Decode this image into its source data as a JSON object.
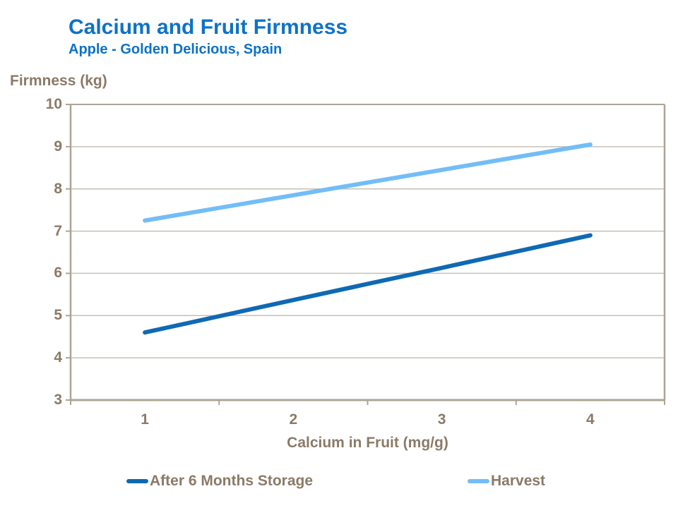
{
  "header": {
    "title": "Calcium and Fruit Firmness",
    "subtitle": "Apple - Golden Delicious, Spain"
  },
  "colors": {
    "title_blue": "#0E72C6",
    "label_brown": "#8B7A67",
    "axis": "#AEA496",
    "grid": "#C7C0B6",
    "background": "#FFFFFF"
  },
  "chart_data": {
    "type": "line",
    "title": "Calcium and Fruit Firmness",
    "subtitle": "Apple - Golden Delicious, Spain",
    "xlabel": "Calcium in Fruit (mg/g)",
    "ylabel": "Firmness (kg)",
    "x": [
      1,
      2,
      3,
      4
    ],
    "xtick_labels": [
      "1",
      "2",
      "3",
      "4"
    ],
    "ytick_values": [
      10,
      9,
      8,
      7,
      6,
      5,
      4,
      3
    ],
    "ytick_labels": [
      "10",
      "9",
      "8",
      "7",
      "6",
      "5",
      "4",
      "3"
    ],
    "xlim": [
      1,
      4
    ],
    "ylim": [
      3,
      10
    ],
    "grid": "horizontal",
    "legend_position": "bottom",
    "series": [
      {
        "name": "After 6 Months Storage",
        "color": "#0F69B4",
        "values": [
          4.6,
          5.37,
          6.13,
          6.9
        ]
      },
      {
        "name": "Harvest",
        "color": "#73BDF7",
        "values": [
          7.25,
          7.85,
          8.45,
          9.05
        ]
      }
    ]
  }
}
